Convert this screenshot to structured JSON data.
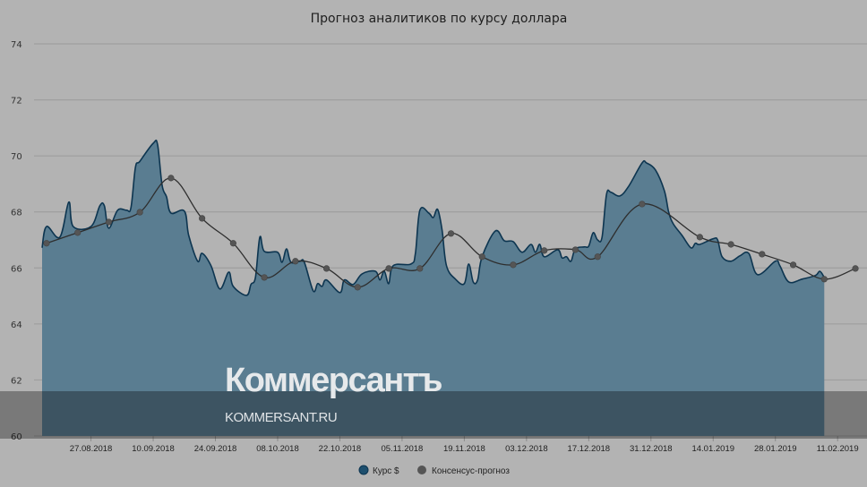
{
  "chart_data": {
    "type": "area",
    "title": "Прогноз аналитиков по курсу доллара",
    "xlabel": "",
    "ylabel": "",
    "ylim": [
      60,
      74
    ],
    "yticks": [
      "60",
      "62",
      "64",
      "66",
      "68",
      "70",
      "72",
      "74"
    ],
    "xlim": [
      "16.08.2018",
      "16.02.2019"
    ],
    "xticks": [
      "27.08.2018",
      "10.09.2018",
      "24.09.2018",
      "08.10.2018",
      "22.10.2018",
      "05.11.2018",
      "19.11.2018",
      "03.12.2018",
      "17.12.2018",
      "31.12.2018",
      "14.01.2019",
      "28.01.2019",
      "11.02.2019"
    ],
    "grid": true,
    "legend_position": "bottom-center",
    "colors": {
      "rate_fill": "#5a7d91",
      "rate_line": "#0d3550",
      "consensus_line": "#2e2e2e",
      "consensus_marker": "#555555"
    },
    "series": [
      {
        "name": "Курс $",
        "type": "area",
        "points": [
          [
            "16.08.2018",
            66.72
          ],
          [
            "17.08.2018",
            67.48
          ],
          [
            "20.08.2018",
            67.1
          ],
          [
            "22.08.2018",
            68.35
          ],
          [
            "23.08.2018",
            67.48
          ],
          [
            "27.08.2018",
            67.48
          ],
          [
            "29.08.2018",
            68.22
          ],
          [
            "30.08.2018",
            68.22
          ],
          [
            "31.08.2018",
            67.42
          ],
          [
            "02.09.2018",
            68.06
          ],
          [
            "04.09.2018",
            68.06
          ],
          [
            "05.09.2018",
            68.15
          ],
          [
            "06.09.2018",
            69.59
          ],
          [
            "07.09.2018",
            69.81
          ],
          [
            "10.09.2018",
            70.45
          ],
          [
            "11.09.2018",
            70.39
          ],
          [
            "12.09.2018",
            68.95
          ],
          [
            "13.09.2018",
            68.54
          ],
          [
            "14.09.2018",
            67.96
          ],
          [
            "17.09.2018",
            68.03
          ],
          [
            "18.09.2018",
            67.16
          ],
          [
            "20.09.2018",
            66.24
          ],
          [
            "21.09.2018",
            66.52
          ],
          [
            "23.09.2018",
            66.08
          ],
          [
            "25.09.2018",
            65.25
          ],
          [
            "27.09.2018",
            65.85
          ],
          [
            "28.09.2018",
            65.34
          ],
          [
            "01.10.2018",
            65.02
          ],
          [
            "02.10.2018",
            65.41
          ],
          [
            "03.10.2018",
            65.66
          ],
          [
            "04.10.2018",
            67.1
          ],
          [
            "05.10.2018",
            66.59
          ],
          [
            "08.10.2018",
            66.56
          ],
          [
            "09.10.2018",
            66.2
          ],
          [
            "10.10.2018",
            66.68
          ],
          [
            "11.10.2018",
            66.2
          ],
          [
            "13.10.2018",
            66.24
          ],
          [
            "14.10.2018",
            66.2
          ],
          [
            "16.10.2018",
            65.18
          ],
          [
            "17.10.2018",
            65.44
          ],
          [
            "18.10.2018",
            65.34
          ],
          [
            "19.10.2018",
            65.57
          ],
          [
            "22.10.2018",
            65.12
          ],
          [
            "23.10.2018",
            65.57
          ],
          [
            "25.10.2018",
            65.41
          ],
          [
            "27.10.2018",
            65.79
          ],
          [
            "30.10.2018",
            65.88
          ],
          [
            "31.10.2018",
            65.57
          ],
          [
            "01.11.2018",
            65.88
          ],
          [
            "02.11.2018",
            65.44
          ],
          [
            "03.11.2018",
            66.08
          ],
          [
            "07.11.2018",
            66.14
          ],
          [
            "08.11.2018",
            66.52
          ],
          [
            "09.11.2018",
            68.06
          ],
          [
            "11.11.2018",
            67.96
          ],
          [
            "12.11.2018",
            67.8
          ],
          [
            "13.11.2018",
            68.09
          ],
          [
            "14.11.2018",
            67.35
          ],
          [
            "15.11.2018",
            66.08
          ],
          [
            "17.11.2018",
            65.6
          ],
          [
            "19.11.2018",
            65.44
          ],
          [
            "20.11.2018",
            66.14
          ],
          [
            "21.11.2018",
            65.5
          ],
          [
            "22.11.2018",
            65.57
          ],
          [
            "23.11.2018",
            66.4
          ],
          [
            "26.11.2018",
            67.32
          ],
          [
            "28.11.2018",
            66.97
          ],
          [
            "30.11.2018",
            66.94
          ],
          [
            "02.12.2018",
            66.56
          ],
          [
            "04.12.2018",
            66.84
          ],
          [
            "05.12.2018",
            66.56
          ],
          [
            "06.12.2018",
            66.84
          ],
          [
            "07.12.2018",
            66.4
          ],
          [
            "10.12.2018",
            66.65
          ],
          [
            "11.12.2018",
            66.36
          ],
          [
            "12.12.2018",
            66.4
          ],
          [
            "13.12.2018",
            66.24
          ],
          [
            "14.12.2018",
            66.68
          ],
          [
            "16.12.2018",
            66.75
          ],
          [
            "17.12.2018",
            66.78
          ],
          [
            "18.12.2018",
            67.26
          ],
          [
            "19.12.2018",
            67.0
          ],
          [
            "20.12.2018",
            67.1
          ],
          [
            "21.12.2018",
            68.63
          ],
          [
            "22.12.2018",
            68.7
          ],
          [
            "24.12.2018",
            68.57
          ],
          [
            "26.12.2018",
            68.92
          ],
          [
            "29.12.2018",
            69.75
          ],
          [
            "30.12.2018",
            69.75
          ],
          [
            "01.01.2019",
            69.5
          ],
          [
            "03.01.2019",
            68.76
          ],
          [
            "04.01.2019",
            67.99
          ],
          [
            "05.01.2019",
            67.58
          ],
          [
            "07.01.2019",
            67.16
          ],
          [
            "09.01.2019",
            66.72
          ],
          [
            "10.01.2019",
            66.88
          ],
          [
            "11.01.2019",
            66.84
          ],
          [
            "14.01.2019",
            67.04
          ],
          [
            "15.01.2019",
            67.0
          ],
          [
            "16.01.2019",
            66.4
          ],
          [
            "18.01.2019",
            66.24
          ],
          [
            "20.01.2019",
            66.43
          ],
          [
            "22.01.2019",
            66.52
          ],
          [
            "24.01.2019",
            65.76
          ],
          [
            "28.01.2019",
            66.24
          ],
          [
            "29.01.2019",
            66.08
          ],
          [
            "31.01.2019",
            65.5
          ],
          [
            "03.02.2019",
            65.6
          ],
          [
            "06.02.2019",
            65.73
          ],
          [
            "07.02.2019",
            65.88
          ],
          [
            "08.02.2019",
            65.66
          ]
        ]
      },
      {
        "name": "Консенсус-прогноз",
        "type": "line",
        "points": [
          [
            "17.08.2018",
            66.88
          ],
          [
            "24.08.2018",
            67.26
          ],
          [
            "31.08.2018",
            67.64
          ],
          [
            "07.09.2018",
            67.99
          ],
          [
            "14.09.2018",
            69.21
          ],
          [
            "21.09.2018",
            67.77
          ],
          [
            "28.09.2018",
            66.88
          ],
          [
            "05.10.2018",
            65.66
          ],
          [
            "12.10.2018",
            66.24
          ],
          [
            "19.10.2018",
            65.98
          ],
          [
            "26.10.2018",
            65.31
          ],
          [
            "02.11.2018",
            65.98
          ],
          [
            "09.11.2018",
            65.98
          ],
          [
            "16.11.2018",
            67.23
          ],
          [
            "23.11.2018",
            66.4
          ],
          [
            "30.11.2018",
            66.11
          ],
          [
            "07.12.2018",
            66.62
          ],
          [
            "14.12.2018",
            66.65
          ],
          [
            "19.12.2018",
            66.4
          ],
          [
            "29.12.2018",
            68.28
          ],
          [
            "11.01.2019",
            67.1
          ],
          [
            "18.01.2019",
            66.84
          ],
          [
            "25.01.2019",
            66.49
          ],
          [
            "01.02.2019",
            66.11
          ],
          [
            "08.02.2019",
            65.6
          ],
          [
            "15.02.2019",
            65.98
          ]
        ]
      }
    ]
  },
  "watermark": {
    "brand": "Коммерсантъ",
    "site": "KOMMERSANT.RU"
  }
}
